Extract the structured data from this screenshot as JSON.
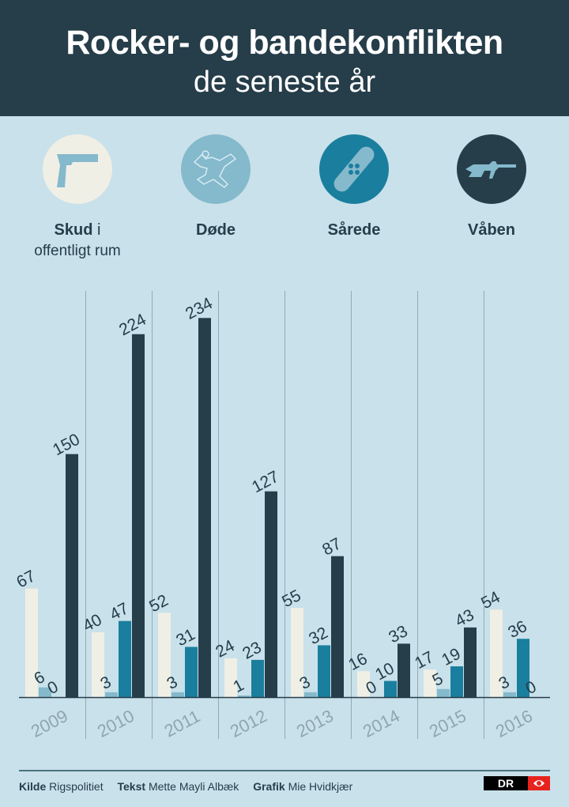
{
  "header": {
    "title": "Rocker- og bandekonflikten",
    "subtitle": "de seneste år"
  },
  "categories": [
    {
      "bold": "Skud",
      "rest": " i",
      "sub": "offentligt rum",
      "icon": "pistol-icon",
      "color": "#f0efe6"
    },
    {
      "bold": "Døde",
      "rest": "",
      "sub": "",
      "icon": "body-outline-icon",
      "color": "#85b9cc"
    },
    {
      "bold": "Sårede",
      "rest": "",
      "sub": "",
      "icon": "bandage-icon",
      "color": "#1a7e9e"
    },
    {
      "bold": "Våben",
      "rest": "",
      "sub": "",
      "icon": "rifle-icon",
      "color": "#263d4a"
    }
  ],
  "chart_data": {
    "type": "bar",
    "categories": [
      "2009",
      "2010",
      "2011",
      "2012",
      "2013",
      "2014",
      "2015",
      "2016"
    ],
    "series": [
      {
        "name": "Skud i offentligt rum",
        "color": "#f0efe6",
        "values": [
          67,
          40,
          52,
          24,
          55,
          16,
          17,
          54
        ]
      },
      {
        "name": "Døde",
        "color": "#85b9cc",
        "values": [
          6,
          3,
          3,
          1,
          3,
          0,
          5,
          3
        ]
      },
      {
        "name": "Sårede",
        "color": "#1a7e9e",
        "values": [
          0,
          47,
          31,
          23,
          32,
          10,
          19,
          36
        ]
      },
      {
        "name": "Våben",
        "color": "#263d4a",
        "values": [
          150,
          224,
          234,
          127,
          87,
          33,
          43,
          0
        ]
      }
    ],
    "ylim": [
      0,
      250
    ],
    "grid": false
  },
  "footer": {
    "kilde_label": "Kilde",
    "kilde": "Rigspolitiet",
    "tekst_label": "Tekst",
    "tekst": "Mette Mayli Albæk",
    "grafik_label": "Grafik",
    "grafik": "Mie Hvidkjær",
    "logo": "DR"
  }
}
